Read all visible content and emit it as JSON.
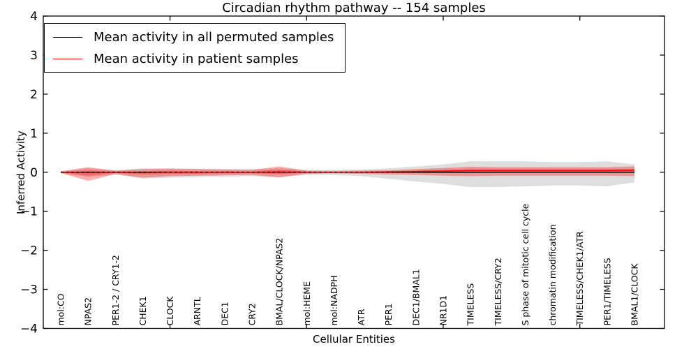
{
  "figure": {
    "background": "#ffffff"
  },
  "legend": {
    "position": "upper-left",
    "entries": [
      {
        "label": "Mean activity in all permuted samples",
        "color": "#000000"
      },
      {
        "label": "Mean activity in patient samples",
        "color": "#ff0000"
      }
    ]
  },
  "chart_data": {
    "type": "line",
    "title": "Circadian rhythm pathway -- 154 samples",
    "xlabel": "Cellular Entities",
    "ylabel": "Inferred Activity",
    "ylim": [
      -4,
      4
    ],
    "yticks": [
      -4,
      -3,
      -2,
      -1,
      0,
      1,
      2,
      3,
      4
    ],
    "xticks_at_category_index": [
      5,
      10,
      15,
      20
    ],
    "grid": false,
    "legend_position": "upper-left",
    "categories": [
      "mol:CO",
      "NPAS2",
      "PER1-2 / CRY1-2",
      "CHEK1",
      "CLOCK",
      "ARNTL",
      "DEC1",
      "CRY2",
      "BMAL/CLOCK/NPAS2",
      "mol:HEME",
      "mol:NADPH",
      "ATR",
      "PER1",
      "DEC1/BMAL1",
      "NR1D1",
      "TIMELESS",
      "TIMELESS/CRY2",
      "S phase of mitotic cell cycle",
      "chromatin modification",
      "TIMELESS/CHEK1/ATR",
      "PER1/TIMELESS",
      "BMAL1/CLOCK"
    ],
    "series": [
      {
        "name": "Mean activity in all permuted samples",
        "color": "#000000",
        "style": "solid",
        "width": 1.4,
        "values": [
          0,
          0,
          0,
          0,
          0,
          0,
          0,
          0,
          0,
          0,
          0,
          0,
          0,
          0,
          0,
          0,
          0,
          0,
          0,
          0,
          0,
          0
        ]
      },
      {
        "name": "Mean activity in patient samples",
        "color": "#ff0000",
        "style": "solid",
        "width": 1.5,
        "values": [
          0,
          -0.01,
          0,
          -0.01,
          0,
          0,
          0,
          0,
          0.01,
          0,
          0,
          0,
          0.01,
          0.02,
          0.03,
          0.04,
          0.04,
          0.04,
          0.04,
          0.04,
          0.04,
          0.05
        ]
      },
      {
        "name": "zero-baseline",
        "color": "#000000",
        "style": "dashed",
        "width": 1.2,
        "values": [
          0,
          0,
          0,
          0,
          0,
          0,
          0,
          0,
          0,
          0,
          0,
          0,
          0,
          0,
          0,
          0,
          0,
          0,
          0,
          0,
          0,
          0
        ]
      }
    ],
    "bands": [
      {
        "name": "permuted-activity-range",
        "color": "#000000",
        "opacity": 0.13,
        "upper": [
          0.03,
          0.1,
          0.05,
          0.1,
          0.1,
          0.09,
          0.08,
          0.08,
          0.1,
          0.06,
          0.06,
          0.07,
          0.1,
          0.15,
          0.2,
          0.28,
          0.28,
          0.28,
          0.26,
          0.26,
          0.28,
          0.2
        ],
        "lower": [
          -0.03,
          -0.12,
          -0.06,
          -0.16,
          -0.14,
          -0.12,
          -0.11,
          -0.1,
          -0.13,
          -0.07,
          -0.07,
          -0.1,
          -0.17,
          -0.24,
          -0.3,
          -0.38,
          -0.38,
          -0.36,
          -0.34,
          -0.34,
          -0.36,
          -0.26
        ]
      },
      {
        "name": "patient-activity-range",
        "color": "#ff0000",
        "opacity": 0.32,
        "upper": [
          0.02,
          0.13,
          0.04,
          0.08,
          0.09,
          0.08,
          0.07,
          0.06,
          0.15,
          0.04,
          0.03,
          0.04,
          0.05,
          0.08,
          0.11,
          0.14,
          0.13,
          0.13,
          0.13,
          0.13,
          0.13,
          0.15
        ],
        "lower": [
          -0.02,
          -0.22,
          -0.05,
          -0.14,
          -0.1,
          -0.09,
          -0.08,
          -0.07,
          -0.13,
          -0.04,
          -0.03,
          -0.04,
          -0.06,
          -0.07,
          -0.09,
          -0.1,
          -0.09,
          -0.09,
          -0.09,
          -0.09,
          -0.09,
          -0.1
        ]
      },
      {
        "name": "patient-activity-core",
        "color": "#ff0000",
        "opacity": 0.3,
        "upper": [
          0.01,
          0.05,
          0.02,
          0.03,
          0.04,
          0.03,
          0.03,
          0.02,
          0.07,
          0.02,
          0.01,
          0.02,
          0.03,
          0.04,
          0.06,
          0.08,
          0.08,
          0.08,
          0.08,
          0.08,
          0.08,
          0.09
        ],
        "lower": [
          -0.01,
          -0.09,
          -0.02,
          -0.06,
          -0.04,
          -0.04,
          -0.03,
          -0.03,
          -0.05,
          -0.02,
          -0.01,
          -0.02,
          -0.02,
          -0.02,
          -0.02,
          -0.02,
          -0.01,
          -0.01,
          -0.01,
          -0.01,
          -0.01,
          -0.01
        ]
      }
    ]
  }
}
